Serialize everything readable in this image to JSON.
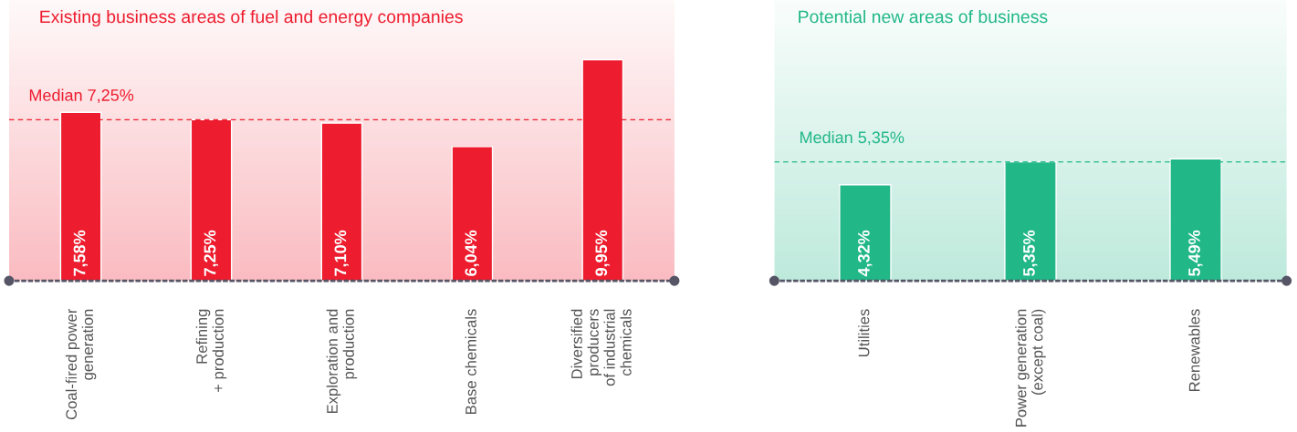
{
  "chart_data": [
    {
      "type": "bar",
      "title": "Existing business areas of fuel and energy companies",
      "categories": [
        "Coal-fired power\ngeneration",
        "Refining\n+ production",
        "Exploration and\nproduction",
        "Base chemicals",
        "Diversified\nproducers\nof industrial\nchemicals"
      ],
      "values": [
        7.58,
        7.25,
        7.1,
        6.04,
        9.95
      ],
      "value_labels": [
        "7,58%",
        "7,25%",
        "7,10%",
        "6,04%",
        "9,95%"
      ],
      "color": "#ed1c2e",
      "ref_lines": [
        {
          "axis": "y",
          "value": 7.25,
          "label": "Median 7,25%",
          "color": "#ed1c2e",
          "line_style": "dashed"
        }
      ]
    },
    {
      "type": "bar",
      "title": "Potential new areas of business",
      "categories": [
        "Utilities",
        "Power generation\n(except coal)",
        "Renewables"
      ],
      "values": [
        4.32,
        5.35,
        5.49
      ],
      "value_labels": [
        "4,32%",
        "5,35%",
        "5,49%"
      ],
      "color": "#21b787",
      "ref_lines": [
        {
          "axis": "y",
          "value": 5.35,
          "label": "Median 5,35%",
          "color": "#21b787",
          "line_style": "dashed"
        }
      ]
    }
  ]
}
